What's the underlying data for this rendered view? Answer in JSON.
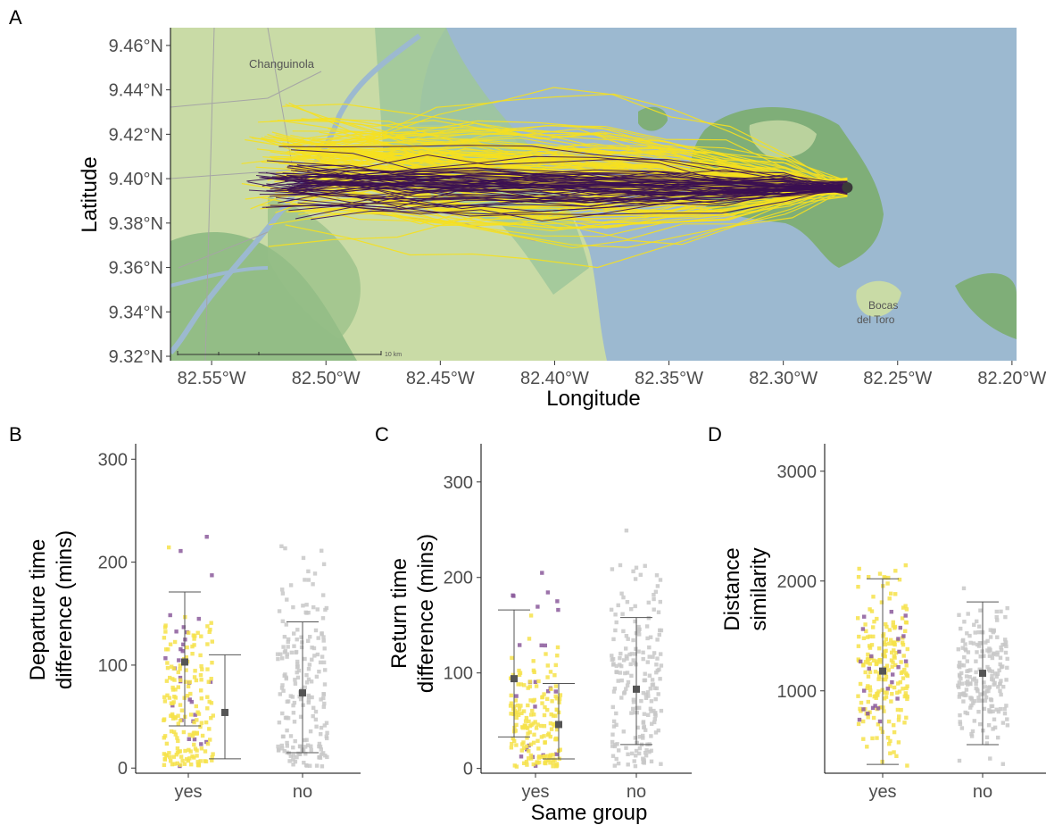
{
  "panels": {
    "A": "A",
    "B": "B",
    "C": "C",
    "D": "D"
  },
  "map": {
    "xlabel": "Longitude",
    "ylabel": "Latitude",
    "x_ticks": [
      "82.55°W",
      "82.50°W",
      "82.45°W",
      "82.40°W",
      "82.35°W",
      "82.30°W",
      "82.25°W",
      "82.20°W"
    ],
    "x_tick_values": [
      -82.55,
      -82.5,
      -82.45,
      -82.4,
      -82.35,
      -82.3,
      -82.25,
      -82.2
    ],
    "y_ticks": [
      "9.46°N",
      "9.44°N",
      "9.42°N",
      "9.40°N",
      "9.38°N",
      "9.36°N",
      "9.34°N",
      "9.32°N"
    ],
    "y_tick_values": [
      9.46,
      9.44,
      9.42,
      9.4,
      9.38,
      9.36,
      9.34,
      9.32
    ],
    "xlim": [
      -82.568,
      -82.198
    ],
    "ylim": [
      9.318,
      9.468
    ],
    "place_labels": [
      "Changuinola",
      "Bocas",
      "del Toro"
    ],
    "scale_bar_label": "10 km",
    "colors": {
      "water": "#9cb9d0",
      "land": "#c6d9a3",
      "forest": "#7fae78",
      "track_purple": "#3b0f52",
      "track_yellow": "#f6e01f"
    },
    "colony": {
      "lon": -82.272,
      "lat": 9.396
    }
  },
  "chart_data": [
    {
      "panel": "B",
      "type": "scatter",
      "xlabel": "",
      "ylabel": "Departure time difference (mins)",
      "categories": [
        "yes",
        "no"
      ],
      "ylim": [
        -5,
        315
      ],
      "y_ticks": [
        0,
        100,
        200,
        300
      ],
      "summary": [
        {
          "category": "yes",
          "group": "purple",
          "mean": 103,
          "lower": 41,
          "upper": 171
        },
        {
          "category": "yes",
          "group": "yellow",
          "mean": 54,
          "lower": 9,
          "upper": 110
        },
        {
          "category": "no",
          "group": "grey",
          "mean": 73,
          "lower": 15,
          "upper": 142
        }
      ]
    },
    {
      "panel": "C",
      "type": "scatter",
      "xlabel": "Same group",
      "ylabel": "Return time difference (mins)",
      "categories": [
        "yes",
        "no"
      ],
      "ylim": [
        -5,
        340
      ],
      "y_ticks": [
        0,
        100,
        200,
        300
      ],
      "summary": [
        {
          "category": "yes",
          "group": "purple",
          "mean": 94,
          "lower": 33,
          "upper": 166
        },
        {
          "category": "yes",
          "group": "yellow",
          "mean": 46,
          "lower": 10,
          "upper": 89
        },
        {
          "category": "no",
          "group": "grey",
          "mean": 83,
          "lower": 25,
          "upper": 158
        }
      ]
    },
    {
      "panel": "D",
      "type": "scatter",
      "xlabel": "",
      "ylabel": "Distance similarity",
      "categories": [
        "yes",
        "no"
      ],
      "ylim": [
        250,
        3250
      ],
      "y_ticks": [
        1000,
        2000,
        3000
      ],
      "summary": [
        {
          "category": "yes",
          "group": "purple+yellow",
          "mean": 1180,
          "lower": 330,
          "upper": 2020
        },
        {
          "category": "no",
          "group": "grey",
          "mean": 1160,
          "lower": 510,
          "upper": 1810
        }
      ]
    }
  ]
}
